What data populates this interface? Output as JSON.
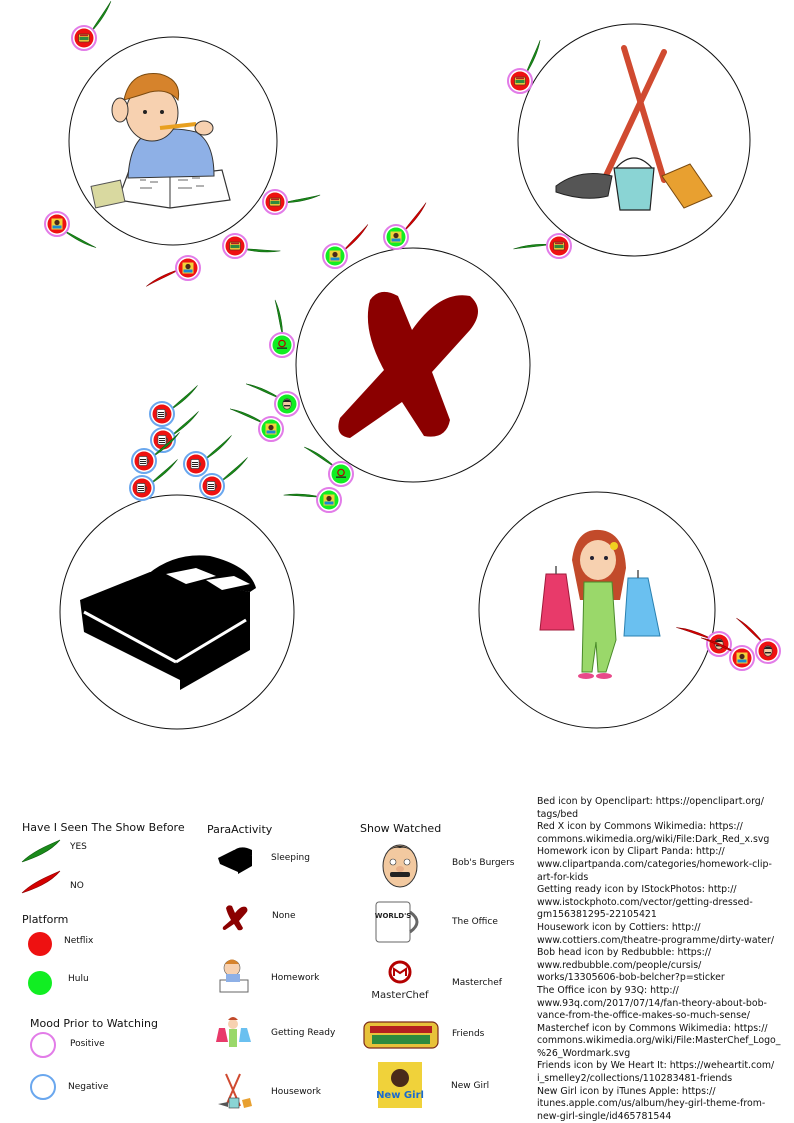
{
  "colors": {
    "netflix": "#ee1111",
    "hulu": "#11ee22",
    "positive": "#e27ce8",
    "negative": "#6aa7ee",
    "yes_leaf": "#1a8a1a",
    "no_leaf": "#d40000",
    "red_x": "#8b0000"
  },
  "legend": {
    "seen_title": "Have I Seen The Show Before",
    "seen_items": [
      {
        "label": "YES",
        "icon": "green-leaf-icon"
      },
      {
        "label": "NO",
        "icon": "red-leaf-icon"
      }
    ],
    "platform_title": "Platform",
    "platform_items": [
      {
        "label": "Netflix",
        "icon": "red-dot-icon"
      },
      {
        "label": "Hulu",
        "icon": "green-dot-icon"
      }
    ],
    "mood_title": "Mood Prior to Watching",
    "mood_items": [
      {
        "label": "Positive",
        "icon": "pink-ring-icon"
      },
      {
        "label": "Negative",
        "icon": "blue-ring-icon"
      }
    ],
    "activity_title": "ParaActivity",
    "activity_items": [
      {
        "label": "Sleeping",
        "icon": "bed-icon"
      },
      {
        "label": "None",
        "icon": "red-x-icon"
      },
      {
        "label": "Homework",
        "icon": "homework-icon"
      },
      {
        "label": "Getting Ready",
        "icon": "getting-ready-icon"
      },
      {
        "label": "Housework",
        "icon": "housework-icon"
      }
    ],
    "show_title": "Show Watched",
    "show_items": [
      {
        "label": "Bob's Burgers",
        "icon": "bob-head-icon"
      },
      {
        "label": "The Office",
        "icon": "office-mug-icon",
        "mug_text": "WORLD'S BEST BOSS"
      },
      {
        "label": "Masterchef",
        "icon": "masterchef-logo-icon",
        "logo_text": "MasterChef"
      },
      {
        "label": "Friends",
        "icon": "friends-logo-icon"
      },
      {
        "label": "New Girl",
        "icon": "new-girl-icon",
        "logo_text": "New Girl"
      }
    ]
  },
  "credits": [
    "Bed icon by Openclipart: https://openclipart.org/\ntags/bed",
    "Red X icon by Commons Wikimedia: https://\ncommons.wikimedia.org/wiki/File:Dark_Red_x.svg",
    "Homework icon by Clipart Panda: http://\nwww.clipartpanda.com/categories/homework-clip-\nart-for-kids",
    "Getting ready icon by IStockPhotos: http://\nwww.istockphoto.com/vector/getting-dressed-\ngm156381295-22105421",
    "Housework icon by Cottiers: http://\nwww.cottiers.com/theatre-programme/dirty-water/",
    "Bob head icon by Redbubble: https://\nwww.redbubble.com/people/cursis/\nworks/13305606-bob-belcher?p=sticker",
    "The Office icon by 93Q: http://\nwww.93q.com/2017/07/14/fan-theory-about-bob-\nvance-from-the-office-makes-so-much-sense/",
    "Masterchef icon by Commons Wikimedia: https://\ncommons.wikimedia.org/wiki/File:MasterChef_Logo_\n%26_Wordmark.svg",
    "Friends icon by We Heart It: https://weheartit.com/\ni_smelley2/collections/110283481-friends",
    "New Girl icon by iTunes Apple: https://\nitunes.apple.com/us/album/hey-girl-theme-from-\nnew-girl-single/id465781544"
  ],
  "activities": [
    {
      "name": "homework",
      "icon": "homework-icon",
      "sessions": [
        {
          "show": "friends",
          "platform": "netflix",
          "mood": "positive",
          "seen": "yes"
        },
        {
          "show": "new-girl",
          "platform": "netflix",
          "mood": "positive",
          "seen": "yes"
        },
        {
          "show": "friends",
          "platform": "netflix",
          "mood": "positive",
          "seen": "yes"
        },
        {
          "show": "friends",
          "platform": "netflix",
          "mood": "positive",
          "seen": "yes"
        },
        {
          "show": "new-girl",
          "platform": "netflix",
          "mood": "positive",
          "seen": "no"
        }
      ]
    },
    {
      "name": "housework",
      "icon": "housework-icon",
      "sessions": [
        {
          "show": "friends",
          "platform": "netflix",
          "mood": "positive",
          "seen": "yes"
        },
        {
          "show": "friends",
          "platform": "netflix",
          "mood": "positive",
          "seen": "yes"
        }
      ]
    },
    {
      "name": "none",
      "icon": "red-x-icon",
      "sessions": [
        {
          "show": "new-girl",
          "platform": "hulu",
          "mood": "positive",
          "seen": "no"
        },
        {
          "show": "new-girl",
          "platform": "hulu",
          "mood": "positive",
          "seen": "no"
        },
        {
          "show": "masterchef",
          "platform": "hulu",
          "mood": "positive",
          "seen": "yes"
        },
        {
          "show": "bobs-burgers",
          "platform": "hulu",
          "mood": "positive",
          "seen": "yes"
        },
        {
          "show": "new-girl",
          "platform": "hulu",
          "mood": "positive",
          "seen": "yes"
        },
        {
          "show": "masterchef",
          "platform": "hulu",
          "mood": "positive",
          "seen": "yes"
        },
        {
          "show": "new-girl",
          "platform": "hulu",
          "mood": "positive",
          "seen": "yes"
        }
      ]
    },
    {
      "name": "sleeping",
      "icon": "bed-icon",
      "sessions": [
        {
          "show": "the-office",
          "platform": "netflix",
          "mood": "negative",
          "seen": "yes"
        },
        {
          "show": "the-office",
          "platform": "netflix",
          "mood": "negative",
          "seen": "yes"
        },
        {
          "show": "the-office",
          "platform": "netflix",
          "mood": "negative",
          "seen": "yes"
        },
        {
          "show": "the-office",
          "platform": "netflix",
          "mood": "negative",
          "seen": "yes"
        },
        {
          "show": "the-office",
          "platform": "netflix",
          "mood": "negative",
          "seen": "yes"
        },
        {
          "show": "the-office",
          "platform": "netflix",
          "mood": "negative",
          "seen": "yes"
        }
      ]
    },
    {
      "name": "getting-ready",
      "icon": "getting-ready-icon",
      "sessions": [
        {
          "show": "bobs-burgers",
          "platform": "netflix",
          "mood": "positive",
          "seen": "no"
        },
        {
          "show": "new-girl",
          "platform": "netflix",
          "mood": "positive",
          "seen": "no"
        },
        {
          "show": "bobs-burgers",
          "platform": "netflix",
          "mood": "positive",
          "seen": "no"
        }
      ]
    }
  ]
}
